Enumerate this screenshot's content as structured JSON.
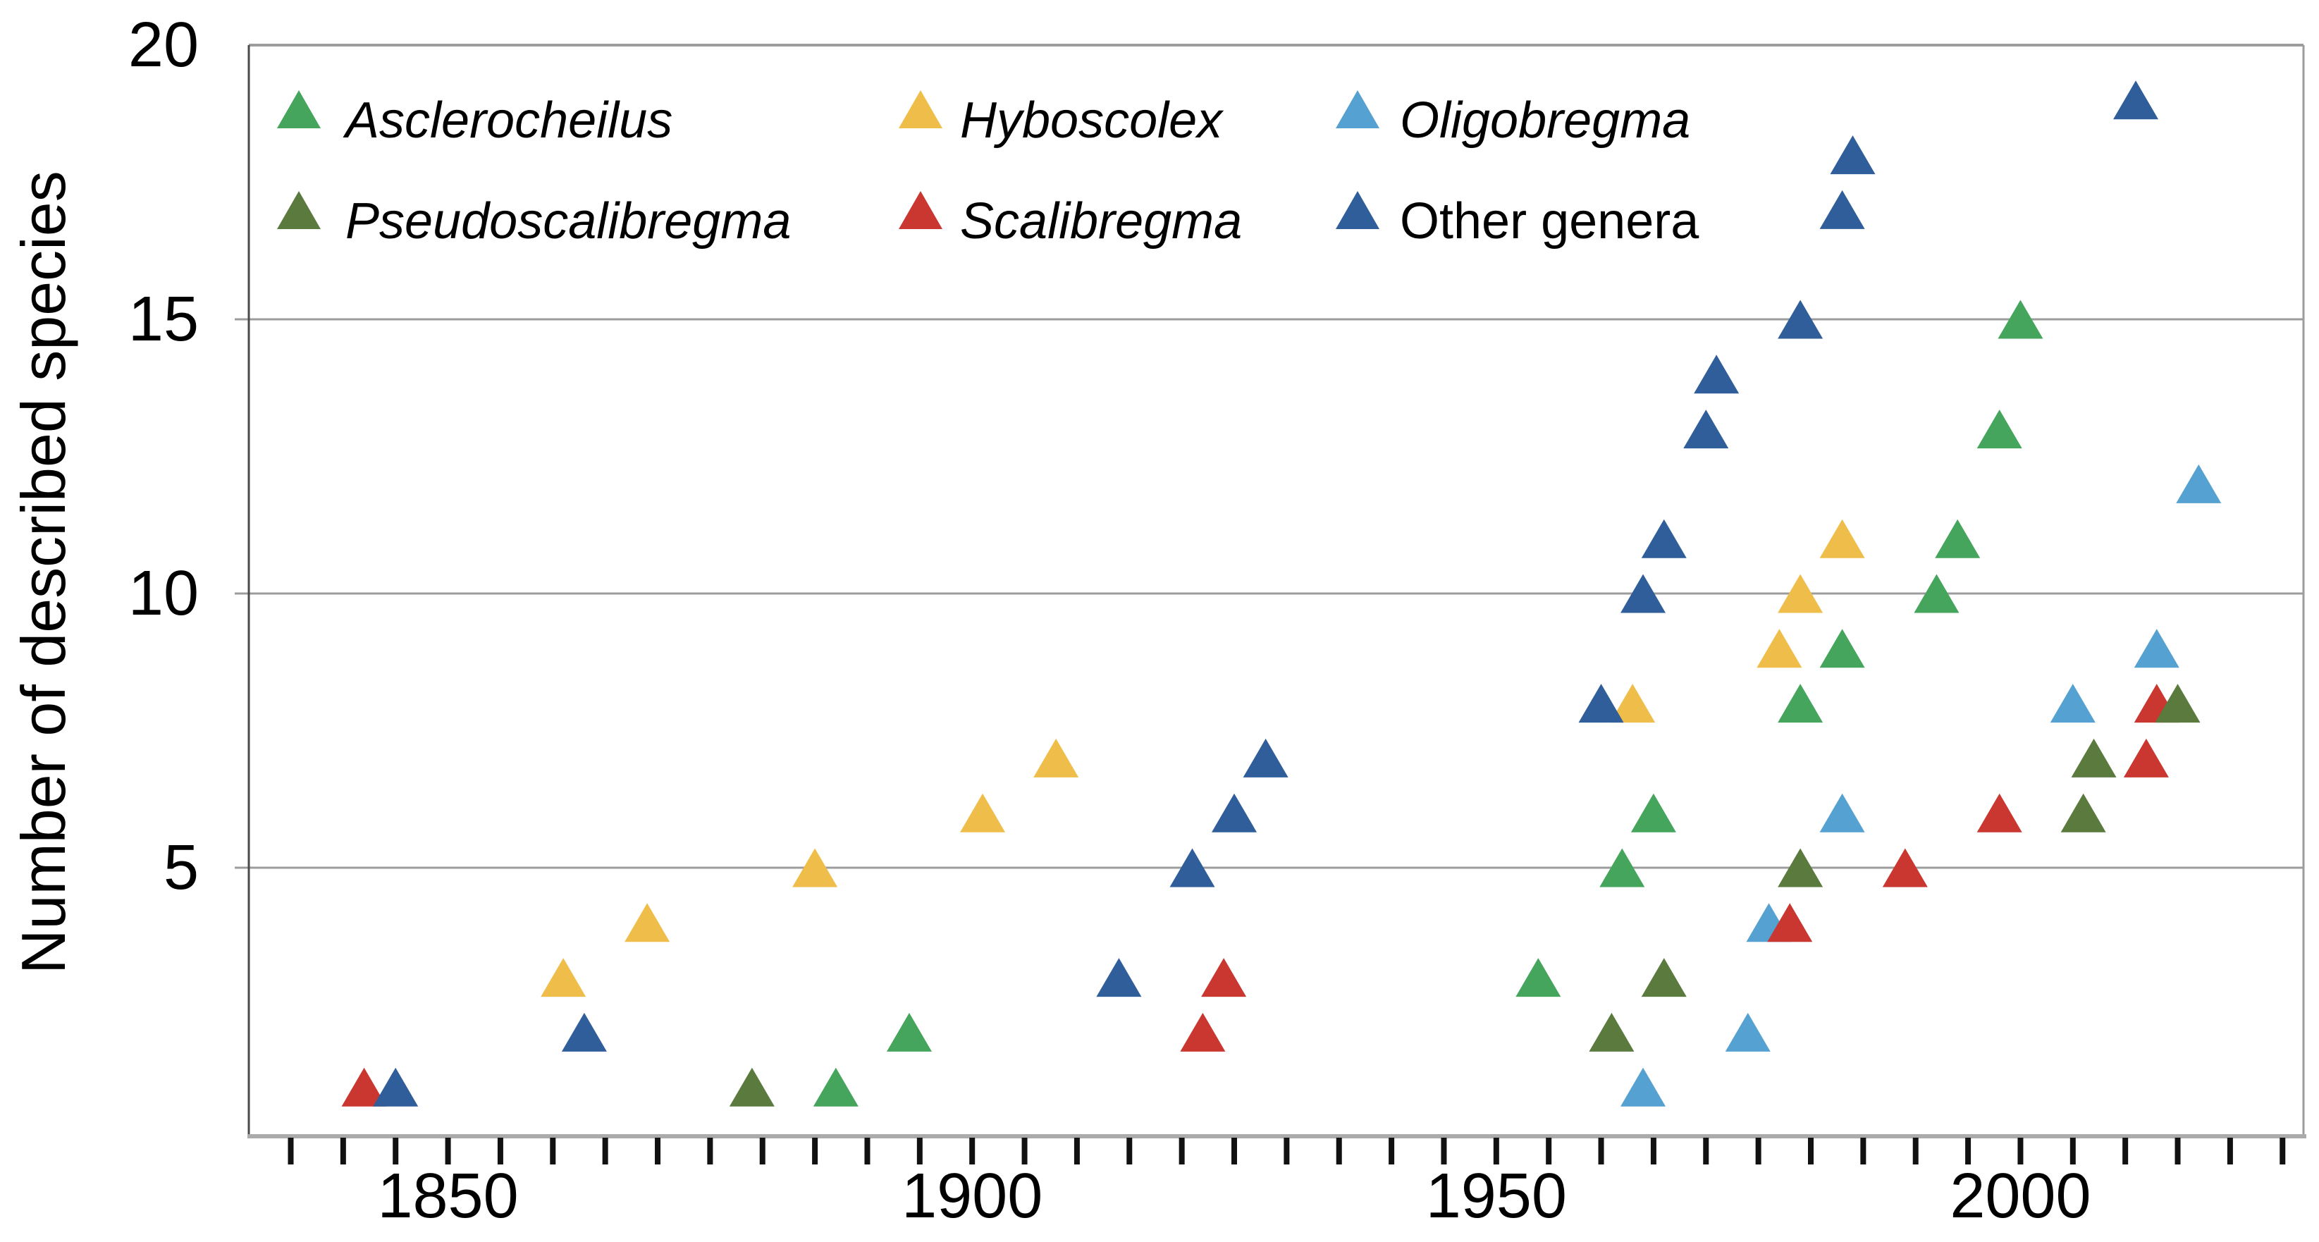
{
  "y_axis": {
    "title": "Number of described species",
    "min": 0,
    "max": 20,
    "tick_labels": [
      "20",
      "15",
      "10",
      "5"
    ],
    "tick_values": [
      20,
      15,
      10,
      5
    ],
    "gridline_values": [
      15,
      10,
      5
    ]
  },
  "x_axis": {
    "tick_labels": [
      "1850",
      "1900",
      "1950",
      "2000"
    ],
    "label_values": [
      1850,
      1900,
      1950,
      2000
    ],
    "minor_tick_start": 1835,
    "minor_tick_end": 2025,
    "minor_tick_step": 5,
    "min": 1831,
    "max": 2027
  },
  "colors": {
    "asclerocheilus": "#45A55C",
    "hyboscolex": "#EFBE4A",
    "oligobregma": "#55A1D1",
    "pseudoscalibregma": "#5A7A3E",
    "scalibregma": "#CA3731",
    "other_genera": "#2F5E9B",
    "gridline": "#9C9C9C",
    "axis_bottom": "#ABABAB",
    "axis_left": "#4A4A4A",
    "tick_mark": "#111111",
    "text": "#000000",
    "background": "#FFFFFF"
  },
  "legend": {
    "rows": [
      [
        "asclerocheilus",
        "hyboscolex",
        "oligobregma"
      ],
      [
        "pseudoscalibregma",
        "scalibregma",
        "other_genera"
      ]
    ]
  },
  "chart_data": {
    "type": "scatter",
    "marker": "triangle-up",
    "title": "",
    "xlabel": "",
    "ylabel": "Number of described species",
    "xlim": [
      1831,
      2027
    ],
    "ylim": [
      0,
      20
    ],
    "x_ticks": [
      1850,
      1900,
      1950,
      2000
    ],
    "minor_x_tick_step": 5,
    "grid": "horizontal",
    "legend_position": "top-left-inside",
    "series": [
      {
        "key": "asclerocheilus",
        "name": "Asclerocheilus",
        "italic": true,
        "color": "#45A55C",
        "points": [
          [
            1887,
            1
          ],
          [
            1894,
            2
          ],
          [
            1954,
            3
          ],
          [
            1962,
            5
          ],
          [
            1965,
            6
          ],
          [
            1979,
            8
          ],
          [
            1983,
            9
          ],
          [
            1992,
            10
          ],
          [
            1994,
            11
          ],
          [
            1998,
            13
          ],
          [
            2000,
            15
          ]
        ]
      },
      {
        "key": "hyboscolex",
        "name": "Hyboscolex",
        "italic": true,
        "color": "#EFBE4A",
        "points": [
          [
            1861,
            3
          ],
          [
            1869,
            4
          ],
          [
            1885,
            5
          ],
          [
            1901,
            6
          ],
          [
            1908,
            7
          ],
          [
            1963,
            8
          ],
          [
            1977,
            9
          ],
          [
            1979,
            10
          ],
          [
            1983,
            11
          ]
        ]
      },
      {
        "key": "oligobregma",
        "name": "Oligobregma",
        "italic": true,
        "color": "#55A1D1",
        "points": [
          [
            1964,
            1
          ],
          [
            1974,
            2
          ],
          [
            1976,
            4
          ],
          [
            1983,
            6
          ],
          [
            2005,
            8
          ],
          [
            2013,
            9
          ],
          [
            2017,
            12
          ]
        ]
      },
      {
        "key": "pseudoscalibregma",
        "name": "Pseudoscalibregma",
        "italic": true,
        "color": "#5A7A3E",
        "points": [
          [
            1879,
            1
          ],
          [
            1961,
            2
          ],
          [
            1966,
            3
          ],
          [
            1979,
            5
          ],
          [
            2006,
            6
          ],
          [
            2007,
            7
          ],
          [
            2015,
            8
          ]
        ]
      },
      {
        "key": "scalibregma",
        "name": "Scalibregma",
        "italic": true,
        "color": "#CA3731",
        "points": [
          [
            1842,
            1
          ],
          [
            1922,
            2
          ],
          [
            1924,
            3
          ],
          [
            1978,
            4
          ],
          [
            1989,
            5
          ],
          [
            1998,
            6
          ],
          [
            2012,
            7
          ],
          [
            2013,
            8
          ]
        ]
      },
      {
        "key": "other_genera",
        "name": "Other genera",
        "italic": false,
        "color": "#2F5E9B",
        "points": [
          [
            1845,
            1
          ],
          [
            1863,
            2
          ],
          [
            1914,
            3
          ],
          [
            1921,
            5
          ],
          [
            1925,
            6
          ],
          [
            1928,
            7
          ],
          [
            1960,
            8
          ],
          [
            1964,
            10
          ],
          [
            1966,
            11
          ],
          [
            1970,
            13
          ],
          [
            1971,
            14
          ],
          [
            1979,
            15
          ],
          [
            1983,
            17
          ],
          [
            1984,
            18
          ],
          [
            2011,
            19
          ]
        ]
      }
    ],
    "draw_order": [
      "asclerocheilus",
      "hyboscolex",
      "oligobregma",
      "scalibregma",
      "pseudoscalibregma",
      "other_genera"
    ]
  }
}
